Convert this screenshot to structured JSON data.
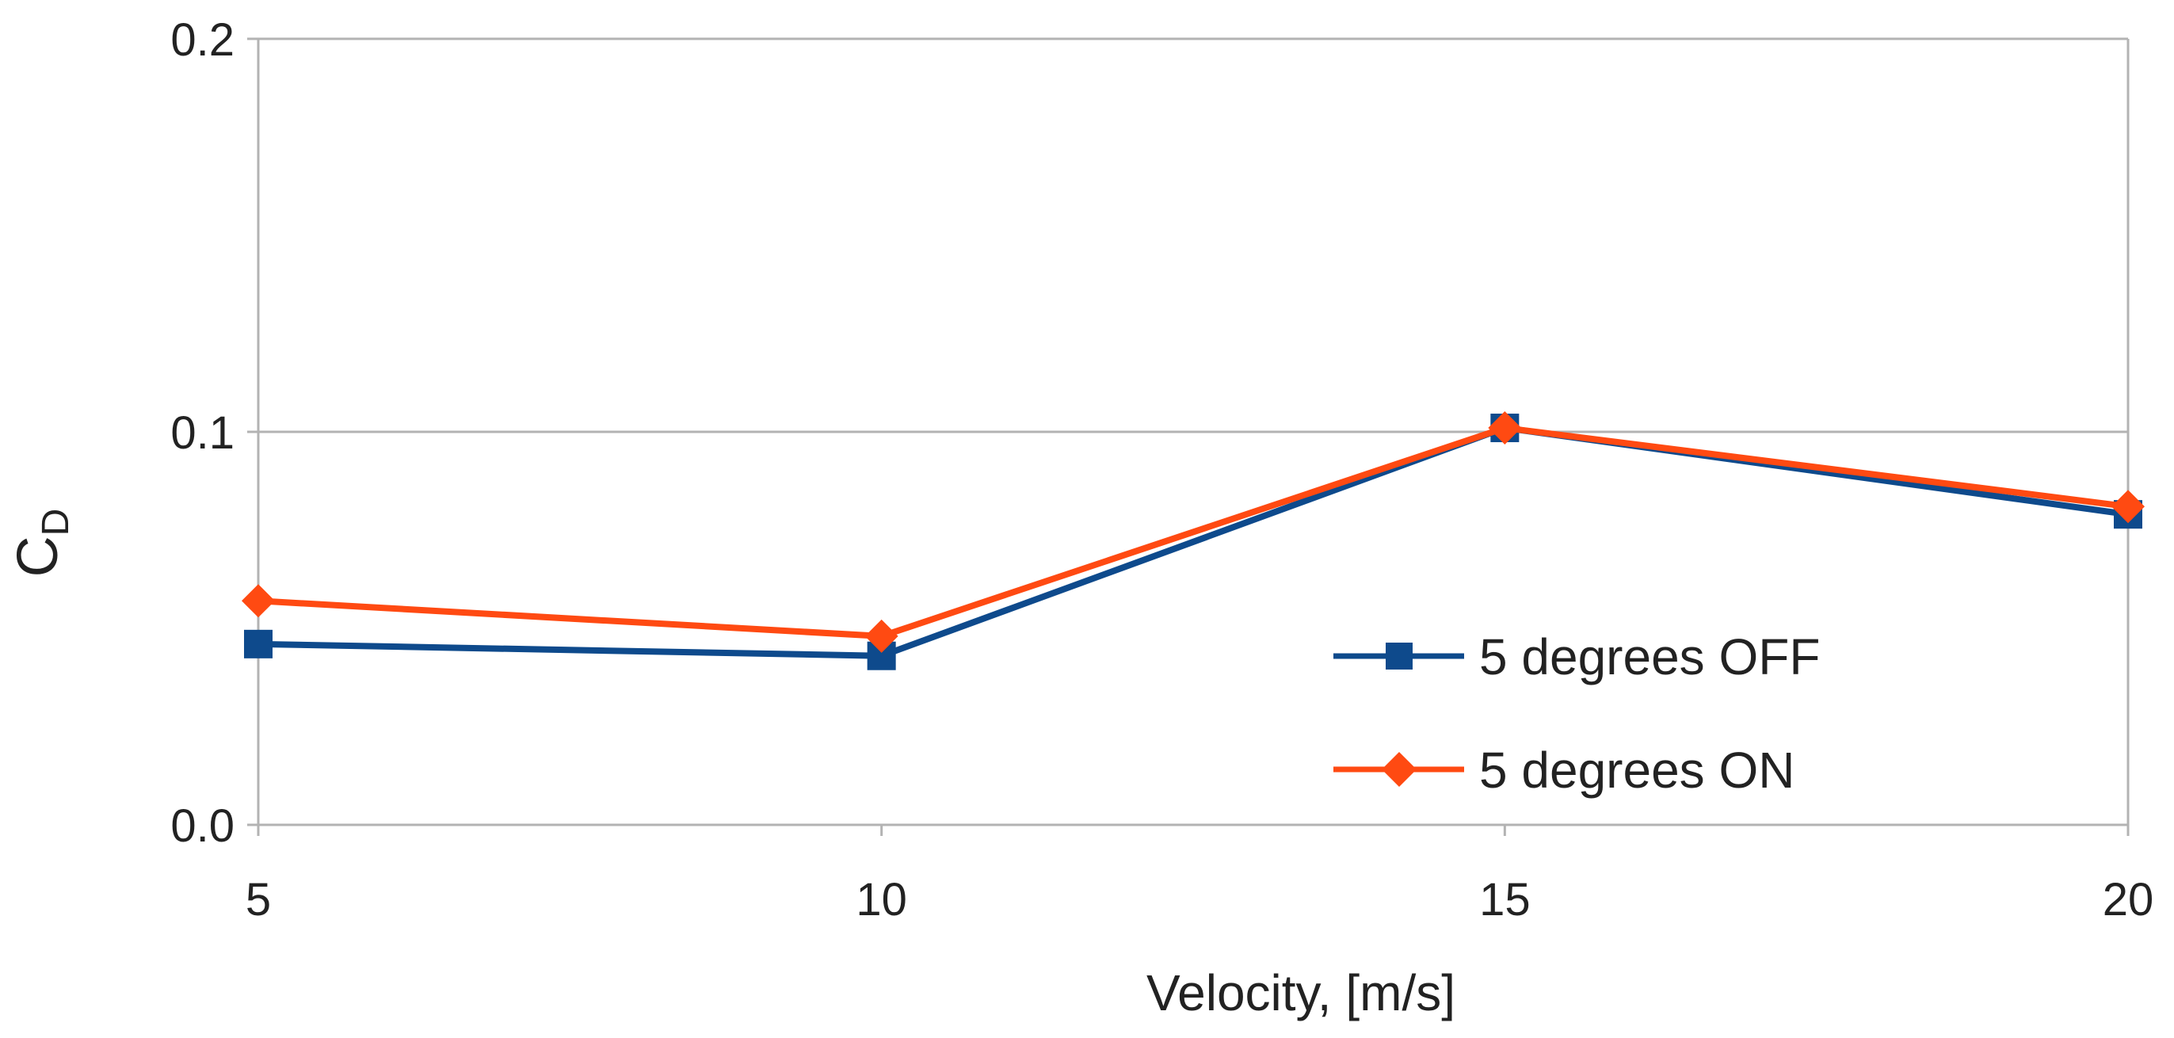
{
  "chart_data": {
    "type": "line",
    "title": "",
    "xlabel": "Velocity, [m/s]",
    "ylabel": {
      "main": "C",
      "subscript": "D"
    },
    "categories": [
      "5",
      "10",
      "15",
      "20"
    ],
    "x": [
      5,
      10,
      15,
      20
    ],
    "xlim": [
      5,
      20
    ],
    "ylim": [
      0,
      0.2
    ],
    "yticks": [
      0.0,
      0.1,
      0.2
    ],
    "ytick_labels": [
      "0.0",
      "0.1",
      "0.2"
    ],
    "grid": "horizontal",
    "legend_position": "center-right",
    "series": [
      {
        "name": "5 degrees OFF",
        "values": [
          0.046,
          0.043,
          0.101,
          0.079
        ],
        "color": "#0e4a8c",
        "marker": "square"
      },
      {
        "name": "5 degrees ON",
        "values": [
          0.057,
          0.048,
          0.101,
          0.081
        ],
        "color": "#ff4a12",
        "marker": "diamond"
      }
    ]
  }
}
